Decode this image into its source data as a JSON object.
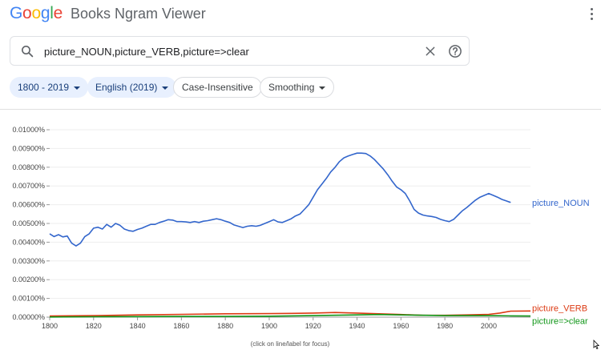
{
  "header": {
    "logo_letters": [
      {
        "ch": "G",
        "color": "#4285F4"
      },
      {
        "ch": "o",
        "color": "#EA4335"
      },
      {
        "ch": "o",
        "color": "#FBBC05"
      },
      {
        "ch": "g",
        "color": "#4285F4"
      },
      {
        "ch": "l",
        "color": "#34A853"
      },
      {
        "ch": "e",
        "color": "#EA4335"
      }
    ],
    "title": "Books Ngram Viewer",
    "menu_icon": "more-vert-icon"
  },
  "search": {
    "value": "picture_NOUN,picture_VERB,picture=>clear",
    "placeholder": "",
    "icons": [
      "search-icon",
      "close-icon",
      "help-icon"
    ]
  },
  "filters": {
    "year_range": "1800 - 2019",
    "corpus": "English (2019)",
    "case": "Case-Insensitive",
    "smoothing": "Smoothing"
  },
  "chart_data": {
    "type": "line",
    "x_range": [
      1800,
      2019
    ],
    "ylim": [
      0,
      0.01
    ],
    "yticks": [
      "0.00000%",
      "0.00100%",
      "0.00200%",
      "0.00300%",
      "0.00400%",
      "0.00500%",
      "0.00600%",
      "0.00700%",
      "0.00800%",
      "0.00900%",
      "0.01000%"
    ],
    "xticks": [
      "1800",
      "1820",
      "1840",
      "1860",
      "1880",
      "1900",
      "1920",
      "1940",
      "1960",
      "1980",
      "2000"
    ],
    "series": [
      {
        "name": "picture_NOUN",
        "color": "#3366cc",
        "points": [
          [
            1800,
            0.00445
          ],
          [
            1802,
            0.0043
          ],
          [
            1804,
            0.0044
          ],
          [
            1806,
            0.00428
          ],
          [
            1808,
            0.00433
          ],
          [
            1810,
            0.00395
          ],
          [
            1812,
            0.0038
          ],
          [
            1814,
            0.00395
          ],
          [
            1816,
            0.0043
          ],
          [
            1818,
            0.00445
          ],
          [
            1820,
            0.00475
          ],
          [
            1822,
            0.0048
          ],
          [
            1824,
            0.0047
          ],
          [
            1826,
            0.00495
          ],
          [
            1828,
            0.0048
          ],
          [
            1830,
            0.005
          ],
          [
            1832,
            0.0049
          ],
          [
            1834,
            0.0047
          ],
          [
            1836,
            0.00462
          ],
          [
            1838,
            0.00458
          ],
          [
            1840,
            0.00468
          ],
          [
            1842,
            0.00475
          ],
          [
            1844,
            0.00485
          ],
          [
            1846,
            0.00495
          ],
          [
            1848,
            0.00495
          ],
          [
            1850,
            0.00505
          ],
          [
            1852,
            0.00512
          ],
          [
            1854,
            0.0052
          ],
          [
            1856,
            0.00518
          ],
          [
            1858,
            0.0051
          ],
          [
            1860,
            0.0051
          ],
          [
            1862,
            0.00508
          ],
          [
            1864,
            0.00505
          ],
          [
            1866,
            0.0051
          ],
          [
            1868,
            0.00505
          ],
          [
            1870,
            0.00512
          ],
          [
            1872,
            0.00515
          ],
          [
            1874,
            0.0052
          ],
          [
            1876,
            0.00525
          ],
          [
            1878,
            0.0052
          ],
          [
            1880,
            0.00512
          ],
          [
            1882,
            0.00505
          ],
          [
            1884,
            0.00492
          ],
          [
            1886,
            0.00485
          ],
          [
            1888,
            0.00478
          ],
          [
            1890,
            0.00485
          ],
          [
            1892,
            0.00488
          ],
          [
            1894,
            0.00485
          ],
          [
            1896,
            0.0049
          ],
          [
            1898,
            0.005
          ],
          [
            1900,
            0.0051
          ],
          [
            1902,
            0.0052
          ],
          [
            1904,
            0.00508
          ],
          [
            1906,
            0.00505
          ],
          [
            1908,
            0.00515
          ],
          [
            1910,
            0.00525
          ],
          [
            1912,
            0.0054
          ],
          [
            1914,
            0.0055
          ],
          [
            1916,
            0.00575
          ],
          [
            1918,
            0.006
          ],
          [
            1920,
            0.0064
          ],
          [
            1922,
            0.0068
          ],
          [
            1924,
            0.0071
          ],
          [
            1926,
            0.0074
          ],
          [
            1928,
            0.00775
          ],
          [
            1930,
            0.008
          ],
          [
            1932,
            0.0083
          ],
          [
            1934,
            0.0085
          ],
          [
            1936,
            0.0086
          ],
          [
            1938,
            0.00868
          ],
          [
            1940,
            0.00875
          ],
          [
            1942,
            0.00875
          ],
          [
            1944,
            0.00873
          ],
          [
            1946,
            0.0086
          ],
          [
            1948,
            0.0084
          ],
          [
            1950,
            0.00815
          ],
          [
            1952,
            0.0079
          ],
          [
            1954,
            0.0076
          ],
          [
            1956,
            0.00725
          ],
          [
            1958,
            0.00695
          ],
          [
            1960,
            0.0068
          ],
          [
            1962,
            0.0066
          ],
          [
            1964,
            0.0062
          ],
          [
            1966,
            0.00575
          ],
          [
            1968,
            0.00555
          ],
          [
            1970,
            0.00545
          ],
          [
            1972,
            0.0054
          ],
          [
            1974,
            0.00537
          ],
          [
            1976,
            0.00532
          ],
          [
            1978,
            0.00522
          ],
          [
            1980,
            0.00515
          ],
          [
            1982,
            0.0051
          ],
          [
            1984,
            0.00522
          ],
          [
            1986,
            0.00545
          ],
          [
            1988,
            0.00568
          ],
          [
            1990,
            0.00585
          ],
          [
            1992,
            0.00605
          ],
          [
            1994,
            0.00625
          ],
          [
            1996,
            0.0064
          ],
          [
            1998,
            0.0065
          ],
          [
            2000,
            0.0066
          ],
          [
            2002,
            0.0065
          ],
          [
            2004,
            0.0064
          ],
          [
            2006,
            0.00628
          ],
          [
            2008,
            0.0062
          ],
          [
            2010,
            0.00612
          ]
        ]
      },
      {
        "name": "picture_VERB",
        "color": "#dc3912",
        "points": [
          [
            1800,
            6e-05
          ],
          [
            1820,
            8e-05
          ],
          [
            1840,
            0.00012
          ],
          [
            1860,
            0.00015
          ],
          [
            1880,
            0.00018
          ],
          [
            1900,
            0.00019
          ],
          [
            1910,
            0.0002
          ],
          [
            1920,
            0.00022
          ],
          [
            1930,
            0.00025
          ],
          [
            1940,
            0.00022
          ],
          [
            1950,
            0.00018
          ],
          [
            1960,
            0.00014
          ],
          [
            1970,
            0.0001
          ],
          [
            1980,
            0.0001
          ],
          [
            1990,
            0.00012
          ],
          [
            2000,
            0.00015
          ],
          [
            2005,
            0.00022
          ],
          [
            2010,
            0.00032
          ],
          [
            2019,
            0.00033
          ]
        ]
      },
      {
        "name": "picture=>clear",
        "color": "#109618",
        "points": [
          [
            1800,
            1e-05
          ],
          [
            1820,
            2e-05
          ],
          [
            1840,
            3e-05
          ],
          [
            1860,
            4e-05
          ],
          [
            1880,
            4e-05
          ],
          [
            1900,
            5e-05
          ],
          [
            1920,
            8e-05
          ],
          [
            1940,
            0.00012
          ],
          [
            1950,
            0.00014
          ],
          [
            1960,
            0.00012
          ],
          [
            1980,
            8e-05
          ],
          [
            2000,
            8e-05
          ],
          [
            2010,
            7e-05
          ],
          [
            2019,
            6e-05
          ]
        ]
      }
    ],
    "footnote": "(click on line/label for focus)"
  }
}
